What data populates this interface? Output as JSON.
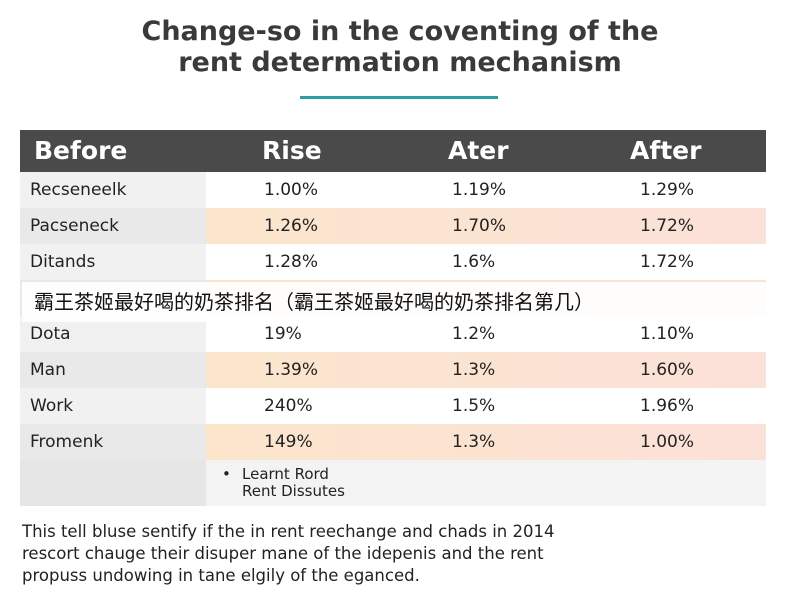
{
  "title": {
    "line1": "Change-so in the coventing of the",
    "line2": "rent determation mechanism"
  },
  "colors": {
    "accent_rule": "#2e9ea0",
    "header_bg": "#4a4a4a",
    "row_peach": "#fbe6cc",
    "row_pink": "#fbe0d8",
    "row_white": "#ffffff"
  },
  "table": {
    "headers": [
      "Before",
      "Rise",
      "Ater",
      "After"
    ],
    "rows": [
      {
        "label": "Recseneelk",
        "values": [
          "1.00%",
          "1.19%",
          "1.29%"
        ],
        "tint": "white"
      },
      {
        "label": "Pacseneck",
        "values": [
          "1.26%",
          "1.70%",
          "1.72%"
        ],
        "tint": "peach"
      },
      {
        "label": "Ditands",
        "values": [
          "1.28%",
          "1.6%",
          "1.72%"
        ],
        "tint": "white"
      },
      {
        "label": "",
        "values": [
          "",
          "",
          ""
        ],
        "tint": "peach"
      },
      {
        "label": "Dota",
        "values": [
          "19%",
          "1.2%",
          "1.10%"
        ],
        "tint": "white"
      },
      {
        "label": "Man",
        "values": [
          "1.39%",
          "1.3%",
          "1.60%"
        ],
        "tint": "peach"
      },
      {
        "label": "Work",
        "values": [
          "240%",
          "1.5%",
          "1.96%"
        ],
        "tint": "white"
      },
      {
        "label": "Fromenk",
        "values": [
          "149%",
          "1.3%",
          "1.00%"
        ],
        "tint": "peach"
      }
    ]
  },
  "notes": {
    "bullet": "•",
    "line1": "Learnt Rord",
    "line2": "Rent Dissutes"
  },
  "overlay": {
    "text": "霸王茶姬最好喝的奶茶排名（霸王茶姬最好喝的奶茶排名第几）"
  },
  "paragraph": {
    "line1": "This tell bluse sentify if the in rent reechange and chads in 2014",
    "line2": "rescort chauge their disuper mane of the idepenis and the rent",
    "line3": "propuss undowing in tane elgily of the eganced."
  }
}
